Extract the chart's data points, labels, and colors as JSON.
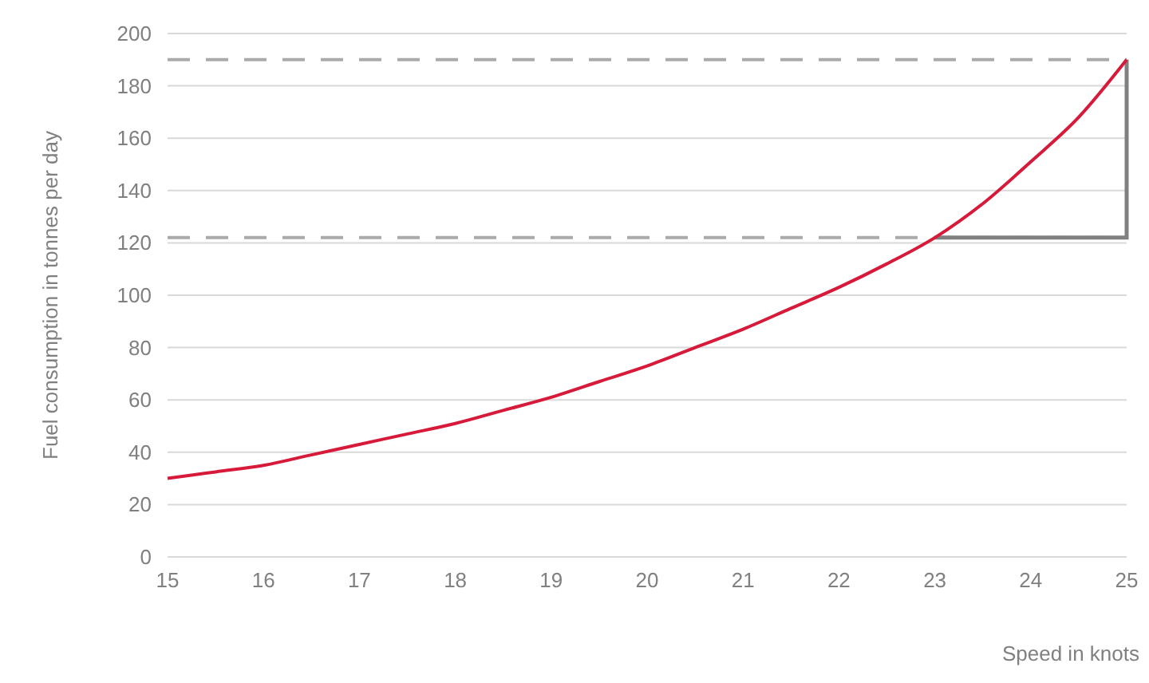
{
  "chart_data": {
    "type": "line",
    "xlabel": "Speed in knots",
    "ylabel": "Fuel consumption in tonnes per day",
    "x": [
      15,
      15.5,
      16,
      16.5,
      17,
      17.5,
      18,
      18.5,
      19,
      19.5,
      20,
      20.5,
      21,
      21.5,
      22,
      22.5,
      23,
      23.5,
      24,
      24.5,
      25
    ],
    "series": [
      {
        "color": "#d7193a",
        "values": [
          30,
          32.5,
          35,
          39,
          43,
          47,
          51,
          56,
          61,
          67,
          73,
          80,
          87,
          95,
          103,
          112,
          122,
          135,
          151,
          168,
          190
        ]
      }
    ],
    "xlim": [
      15,
      25
    ],
    "xticks": [
      15,
      16,
      17,
      18,
      19,
      20,
      21,
      22,
      23,
      24,
      25
    ],
    "ylim": [
      0,
      200
    ],
    "yticks": [
      0,
      20,
      40,
      60,
      80,
      100,
      120,
      140,
      160,
      180,
      200
    ],
    "grid": "y",
    "marker": "none",
    "line_style": "solid",
    "ref_lines": [
      {
        "axis": "y",
        "value": 190,
        "color": "#aaaaaa",
        "line_style": "dashed"
      },
      {
        "axis": "y",
        "value": 122,
        "color": "#aaaaaa",
        "line_style": "dashed"
      }
    ]
  }
}
